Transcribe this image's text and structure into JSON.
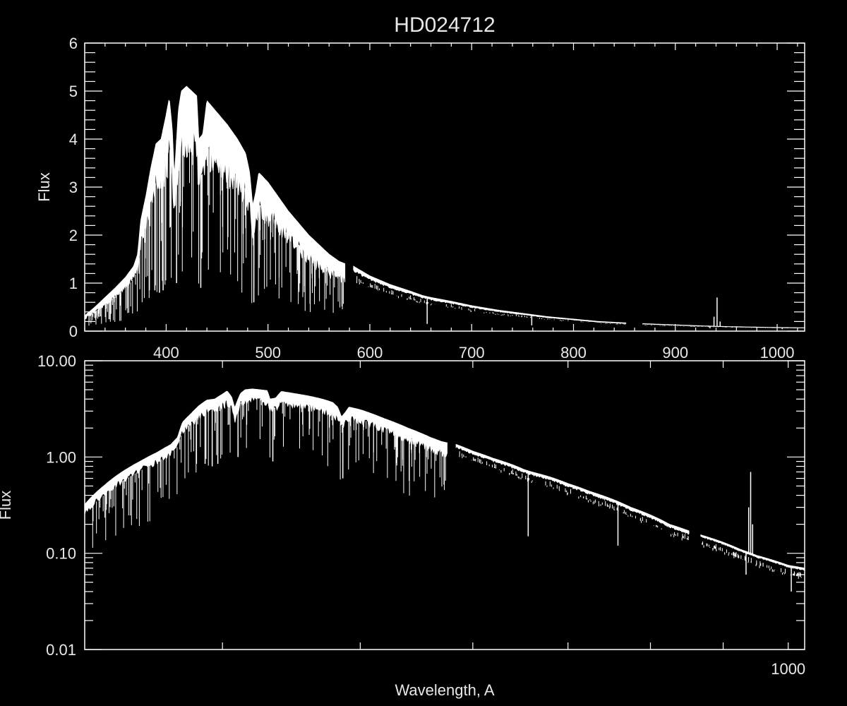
{
  "chart_data": [
    {
      "type": "line",
      "title": "HD024712",
      "ylabel": "Flux",
      "xlabel": "",
      "xscale": "linear",
      "yscale": "linear",
      "xlim": [
        320,
        1027
      ],
      "ylim": [
        0,
        6
      ],
      "xticks": [
        400,
        500,
        600,
        700,
        800,
        900,
        1000
      ],
      "xtick_labels": [
        "400",
        "500",
        "600",
        "700",
        "800",
        "900",
        "1000"
      ],
      "yticks": [
        0,
        1,
        2,
        3,
        4,
        5,
        6
      ],
      "ytick_labels": [
        "0",
        "1",
        "2",
        "3",
        "4",
        "5",
        "6"
      ],
      "grid": false,
      "color": "#ffffff"
    },
    {
      "type": "line",
      "title": "",
      "ylabel": "Flux",
      "xlabel": "Wavelength, A",
      "xscale": "log",
      "yscale": "log",
      "xlim": [
        320,
        1027
      ],
      "ylim": [
        0.01,
        10
      ],
      "xticks": [
        400,
        500,
        600,
        700,
        800,
        900,
        1000
      ],
      "xtick_labels": [
        "",
        "",
        "",
        "",
        "",
        "",
        "1000"
      ],
      "yticks": [
        0.01,
        0.1,
        1,
        10
      ],
      "ytick_labels": [
        "0.01",
        "0.10",
        "1.00",
        "10.00"
      ],
      "grid": false,
      "color": "#ffffff"
    }
  ],
  "spectrum": {
    "segments": [
      [
        [
          320,
          0.32
        ],
        [
          330,
          0.5
        ],
        [
          340,
          0.7
        ],
        [
          350,
          0.9
        ],
        [
          360,
          1.12
        ],
        [
          368,
          1.35
        ],
        [
          372,
          1.6
        ],
        [
          375,
          2.3
        ],
        [
          380,
          2.8
        ],
        [
          385,
          3.4
        ],
        [
          390,
          3.9
        ],
        [
          395,
          4.0
        ],
        [
          400,
          4.5
        ],
        [
          403,
          4.85
        ],
        [
          406,
          4.2
        ],
        [
          408,
          3.2
        ],
        [
          412,
          4.6
        ],
        [
          415,
          5.0
        ],
        [
          420,
          5.1
        ],
        [
          425,
          5.0
        ],
        [
          430,
          4.9
        ],
        [
          432,
          4.0
        ],
        [
          436,
          4.1
        ],
        [
          440,
          4.8
        ],
        [
          450,
          4.55
        ],
        [
          460,
          4.3
        ],
        [
          470,
          4.0
        ],
        [
          478,
          3.7
        ],
        [
          482,
          3.3
        ],
        [
          485,
          2.6
        ],
        [
          488,
          2.9
        ],
        [
          491,
          3.3
        ],
        [
          500,
          3.1
        ],
        [
          510,
          2.8
        ],
        [
          520,
          2.5
        ],
        [
          530,
          2.25
        ],
        [
          540,
          2.0
        ],
        [
          550,
          1.8
        ],
        [
          560,
          1.6
        ],
        [
          570,
          1.45
        ],
        [
          576,
          1.4
        ]
      ],
      [
        [
          584,
          1.35
        ],
        [
          600,
          1.15
        ],
        [
          620,
          0.97
        ],
        [
          640,
          0.83
        ],
        [
          652,
          0.74
        ],
        [
          660,
          0.7
        ],
        [
          680,
          0.62
        ],
        [
          700,
          0.53
        ],
        [
          725,
          0.44
        ],
        [
          750,
          0.37
        ],
        [
          775,
          0.3
        ],
        [
          800,
          0.25
        ],
        [
          825,
          0.2
        ],
        [
          852,
          0.17
        ]
      ],
      [
        [
          868,
          0.155
        ],
        [
          900,
          0.13
        ],
        [
          925,
          0.11
        ],
        [
          950,
          0.095
        ],
        [
          975,
          0.085
        ],
        [
          1000,
          0.075
        ],
        [
          1027,
          0.07
        ]
      ]
    ],
    "absorption_lines": [
      [
        383.5,
        0.85
      ],
      [
        388.9,
        0.85
      ],
      [
        393.4,
        0.8
      ],
      [
        397,
        0.85
      ],
      [
        410.2,
        1.0
      ],
      [
        434,
        0.9
      ],
      [
        486.1,
        0.6
      ],
      [
        656.3,
        0.15
      ],
      [
        759,
        0.12
      ],
      [
        934,
        0.06
      ],
      [
        1005,
        0.04
      ]
    ],
    "emission_lines": [
      [
        938,
        0.3
      ],
      [
        941,
        0.7
      ],
      [
        944,
        0.2
      ]
    ]
  }
}
